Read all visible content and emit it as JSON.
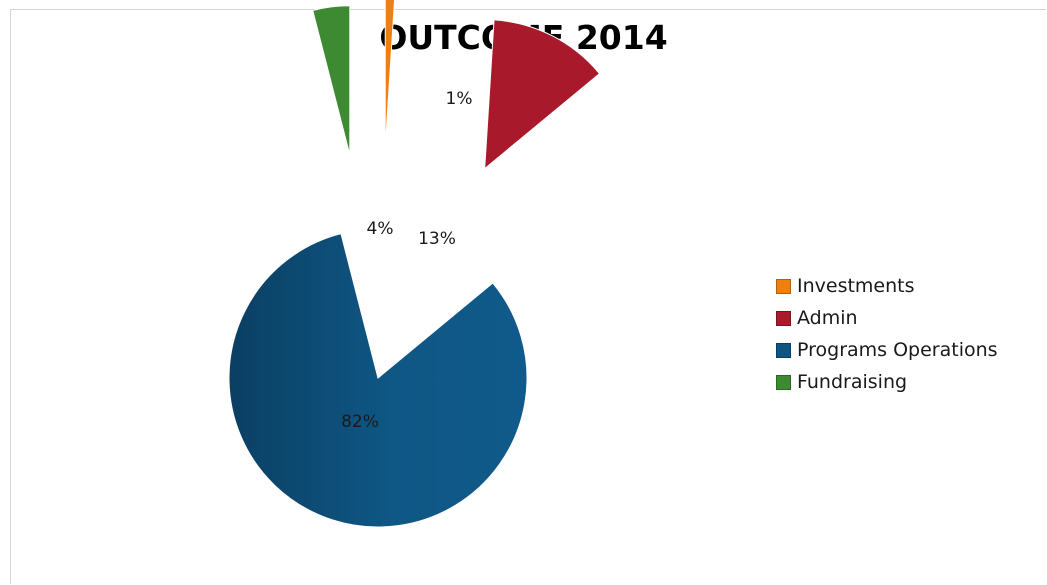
{
  "chart_data": {
    "type": "pie",
    "title": "OUTCOME 2014",
    "categories": [
      "Investments",
      "Admin",
      "Programs Operations",
      "Fundraising"
    ],
    "values": [
      1,
      13,
      82,
      4
    ],
    "data_labels": [
      "1%",
      "13%",
      "82%",
      "4%"
    ],
    "colors": [
      "#f07f12",
      "#a8192b",
      "#0f5582",
      "#3e8a33"
    ],
    "exploded": true,
    "legend_position": "right"
  }
}
